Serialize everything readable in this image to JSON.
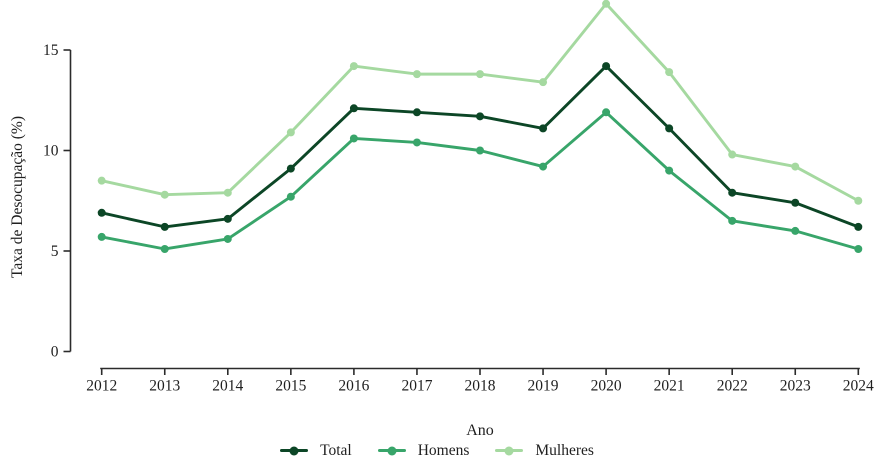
{
  "figure": {
    "background": "#ffffff",
    "axis_color": "#2b2b2b",
    "text_color": "#1f1f1f"
  },
  "chart_data": {
    "type": "line",
    "title": "",
    "xlabel": "Ano",
    "ylabel": "Taxa de Desocupação (%)",
    "x": [
      2012,
      2013,
      2014,
      2015,
      2016,
      2017,
      2018,
      2019,
      2020,
      2021,
      2022,
      2023,
      2024
    ],
    "x_tick_labels": [
      "2012",
      "2013",
      "2014",
      "2015",
      "2016",
      "2017",
      "2018",
      "2019",
      "2020",
      "2021",
      "2022",
      "2023",
      "2024"
    ],
    "y_ticks": [
      0,
      5,
      10,
      15
    ],
    "y_tick_labels": [
      "0",
      "5",
      "10",
      "15"
    ],
    "ylim": [
      0,
      15
    ],
    "grid": false,
    "legend_position": "bottom",
    "marker": "circle",
    "series": [
      {
        "name": "Total",
        "color": "#0c4626",
        "values": [
          6.9,
          6.2,
          6.6,
          9.1,
          12.1,
          11.9,
          11.7,
          11.1,
          14.2,
          11.1,
          7.9,
          7.4,
          6.2
        ]
      },
      {
        "name": "Homens",
        "color": "#38a56a",
        "values": [
          5.7,
          5.1,
          5.6,
          7.7,
          10.6,
          10.4,
          10.0,
          9.2,
          11.9,
          9.0,
          6.5,
          6.0,
          5.1
        ]
      },
      {
        "name": "Mulheres",
        "color": "#a5d9a0",
        "values": [
          8.5,
          7.8,
          7.9,
          10.9,
          14.2,
          13.8,
          13.8,
          13.4,
          17.3,
          13.9,
          9.8,
          9.2,
          7.5
        ]
      }
    ]
  }
}
